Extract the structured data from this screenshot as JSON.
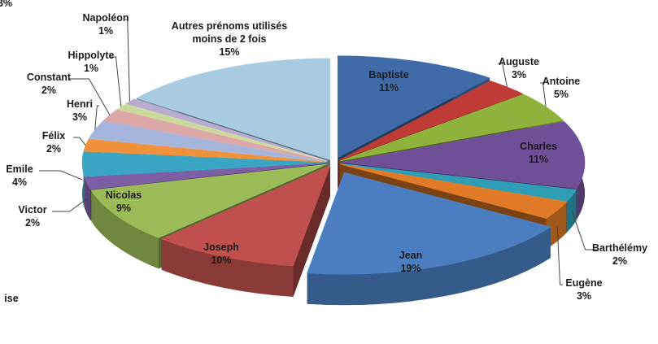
{
  "chart_data": {
    "type": "pie",
    "categories": [
      "Baptiste",
      "Auguste",
      "Antoine",
      "Charles",
      "Barthélémy",
      "Eugène",
      "Jean",
      "Joseph",
      "Nicolas",
      "Victor",
      "Emile",
      "Félix",
      "Henri",
      "Constant",
      "Hippolyte",
      "Napoléon",
      "Autres prénoms utilisés moins de 2 fois"
    ],
    "values": [
      11,
      3,
      5,
      11,
      2,
      3,
      19,
      10,
      9,
      2,
      4,
      2,
      3,
      2,
      1,
      1,
      15
    ],
    "value_labels": [
      "11%",
      "3%",
      "5%",
      "11%",
      "2%",
      "3%",
      "19%",
      "10%",
      "9%",
      "2%",
      "4%",
      "2%",
      "3%",
      "2%",
      "1%",
      "1%",
      "15%"
    ],
    "colors": [
      "#3f6ba8",
      "#c03a36",
      "#8fb23c",
      "#6e4f98",
      "#2f9db6",
      "#e07a26",
      "#4a7ec0",
      "#c0504d",
      "#9bbb59",
      "#7b5ea3",
      "#3aa5c3",
      "#f0913b",
      "#a4b4da",
      "#dba6a5",
      "#c9d99c",
      "#b9aad0",
      "#a9cbe0"
    ],
    "annotations": [
      "3%",
      "ise"
    ]
  }
}
